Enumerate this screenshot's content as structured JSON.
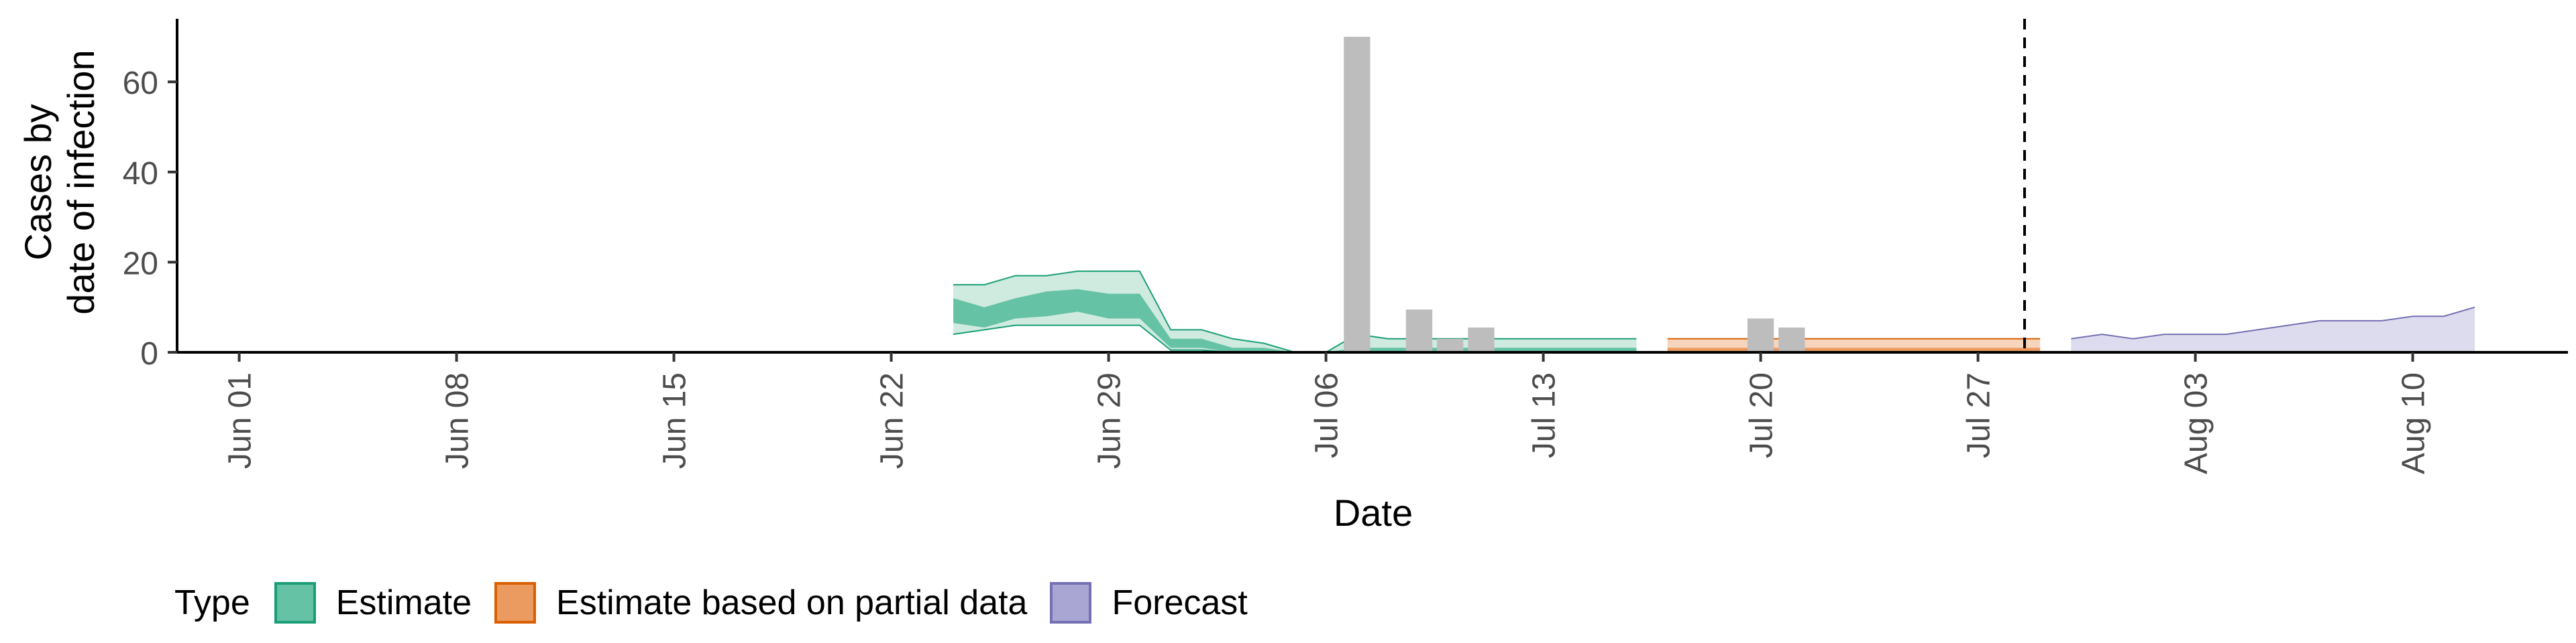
{
  "chart_data": {
    "type": "area",
    "title": "",
    "xlabel": "Date",
    "ylabel_lines": [
      "Cases by",
      "date of infection"
    ],
    "x_ticks": [
      "Jun 01",
      "Jun 08",
      "Jun 15",
      "Jun 22",
      "Jun 29",
      "Jul 06",
      "Jul 13",
      "Jul 20",
      "Jul 27",
      "Aug 03",
      "Aug 10"
    ],
    "y_ticks": [
      "0",
      "20",
      "40",
      "60"
    ],
    "ylim": [
      0,
      74
    ],
    "xlim": [
      "2020-05-30",
      "2020-08-15"
    ],
    "forecast_start": "2020-07-29",
    "legend": {
      "title": "Type",
      "position": "bottom",
      "items": [
        {
          "label": "Estimate",
          "fill": "#66c2a5",
          "border": "#1b9e77"
        },
        {
          "label": "Estimate based on partial data",
          "fill": "#eb9b5f",
          "border": "#d95f02"
        },
        {
          "label": "Forecast",
          "fill": "#a9a6d4",
          "border": "#7570b3"
        }
      ]
    },
    "reported_cases": [
      {
        "date": "2020-07-07",
        "value": 70
      },
      {
        "date": "2020-07-09",
        "value": 9.5
      },
      {
        "date": "2020-07-10",
        "value": 3
      },
      {
        "date": "2020-07-11",
        "value": 5.5
      },
      {
        "date": "2020-07-20",
        "value": 7.5
      },
      {
        "date": "2020-07-21",
        "value": 5.5
      }
    ],
    "series": [
      {
        "name": "Estimate",
        "color": "#1b9e77",
        "outer_fill": "#cfeadf",
        "inner_fill": "#66c2a5",
        "points": [
          {
            "date": "2020-06-24",
            "lo90": 4,
            "lo50": 6.5,
            "median": 9,
            "hi50": 12,
            "hi90": 15
          },
          {
            "date": "2020-06-25",
            "lo90": 5,
            "lo50": 5.5,
            "median": 8,
            "hi50": 10,
            "hi90": 15
          },
          {
            "date": "2020-06-26",
            "lo90": 6,
            "lo50": 7.5,
            "median": 10,
            "hi50": 12,
            "hi90": 17
          },
          {
            "date": "2020-06-27",
            "lo90": 6,
            "lo50": 8,
            "median": 11,
            "hi50": 13.5,
            "hi90": 17
          },
          {
            "date": "2020-06-28",
            "lo90": 6,
            "lo50": 9,
            "median": 12,
            "hi50": 14,
            "hi90": 18
          },
          {
            "date": "2020-06-29",
            "lo90": 6,
            "lo50": 7.5,
            "median": 10,
            "hi50": 13,
            "hi90": 18
          },
          {
            "date": "2020-06-30",
            "lo90": 6,
            "lo50": 7.5,
            "median": 10,
            "hi50": 13,
            "hi90": 18
          },
          {
            "date": "2020-07-01",
            "lo90": 0.5,
            "lo50": 1,
            "median": 2,
            "hi50": 3,
            "hi90": 5
          },
          {
            "date": "2020-07-02",
            "lo90": 0.5,
            "lo50": 1,
            "median": 2,
            "hi50": 3,
            "hi90": 5
          },
          {
            "date": "2020-07-03",
            "lo90": 0,
            "lo50": 0,
            "median": 0.5,
            "hi50": 1,
            "hi90": 3
          },
          {
            "date": "2020-07-04",
            "lo90": 0,
            "lo50": 0,
            "median": 0.5,
            "hi50": 1,
            "hi90": 2
          },
          {
            "date": "2020-07-05",
            "lo90": 0,
            "lo50": 0,
            "median": 0,
            "hi50": 0,
            "hi90": 0
          },
          {
            "date": "2020-07-06",
            "lo90": 0,
            "lo50": 0,
            "median": 0,
            "hi50": 0,
            "hi90": 0
          },
          {
            "date": "2020-07-07",
            "lo90": 0,
            "lo50": 0,
            "median": 0.5,
            "hi50": 1,
            "hi90": 4
          },
          {
            "date": "2020-07-08",
            "lo90": 0,
            "lo50": 0,
            "median": 0.5,
            "hi50": 1,
            "hi90": 3
          },
          {
            "date": "2020-07-09",
            "lo90": 0,
            "lo50": 0,
            "median": 0.5,
            "hi50": 1,
            "hi90": 3
          },
          {
            "date": "2020-07-10",
            "lo90": 0,
            "lo50": 0,
            "median": 0.5,
            "hi50": 1,
            "hi90": 3
          },
          {
            "date": "2020-07-11",
            "lo90": 0,
            "lo50": 0,
            "median": 0.5,
            "hi50": 1,
            "hi90": 3
          },
          {
            "date": "2020-07-12",
            "lo90": 0,
            "lo50": 0,
            "median": 0.5,
            "hi50": 1,
            "hi90": 3
          },
          {
            "date": "2020-07-13",
            "lo90": 0,
            "lo50": 0,
            "median": 0.5,
            "hi50": 1,
            "hi90": 3
          },
          {
            "date": "2020-07-14",
            "lo90": 0,
            "lo50": 0,
            "median": 0.5,
            "hi50": 1,
            "hi90": 3
          },
          {
            "date": "2020-07-15",
            "lo90": 0,
            "lo50": 0,
            "median": 0.5,
            "hi50": 1,
            "hi90": 3
          },
          {
            "date": "2020-07-16",
            "lo90": 0,
            "lo50": 0,
            "median": 0.5,
            "hi50": 1,
            "hi90": 3
          }
        ]
      },
      {
        "name": "Estimate based on partial data",
        "color": "#d95f02",
        "outer_fill": "#f7d4bc",
        "inner_fill": "#eb9b5f",
        "points": [
          {
            "date": "2020-07-17",
            "lo90": 0,
            "lo50": 0,
            "median": 0.5,
            "hi50": 1,
            "hi90": 3
          },
          {
            "date": "2020-07-29",
            "lo90": 0,
            "lo50": 0,
            "median": 0.5,
            "hi50": 1,
            "hi90": 3
          }
        ]
      },
      {
        "name": "Forecast",
        "color": "#7570b3",
        "outer_fill": "#dddcee",
        "inner_fill": "#a9a6d4",
        "points": [
          {
            "date": "2020-07-30",
            "lo90": 0,
            "hi90": 3
          },
          {
            "date": "2020-07-31",
            "lo90": 0,
            "hi90": 4
          },
          {
            "date": "2020-08-01",
            "lo90": 0,
            "hi90": 3
          },
          {
            "date": "2020-08-02",
            "lo90": 0,
            "hi90": 4
          },
          {
            "date": "2020-08-03",
            "lo90": 0,
            "hi90": 4
          },
          {
            "date": "2020-08-04",
            "lo90": 0,
            "hi90": 4
          },
          {
            "date": "2020-08-05",
            "lo90": 0,
            "hi90": 5
          },
          {
            "date": "2020-08-06",
            "lo90": 0,
            "hi90": 6
          },
          {
            "date": "2020-08-07",
            "lo90": 0,
            "hi90": 7
          },
          {
            "date": "2020-08-08",
            "lo90": 0,
            "hi90": 7
          },
          {
            "date": "2020-08-09",
            "lo90": 0,
            "hi90": 7
          },
          {
            "date": "2020-08-10",
            "lo90": 0,
            "hi90": 8
          },
          {
            "date": "2020-08-11",
            "lo90": 0,
            "hi90": 8
          },
          {
            "date": "2020-08-12",
            "lo90": 0,
            "hi90": 10
          }
        ]
      }
    ]
  }
}
